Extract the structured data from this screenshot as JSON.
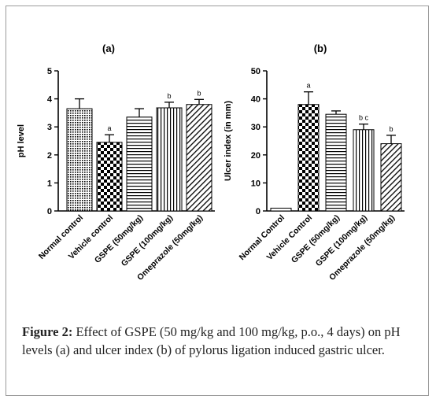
{
  "chart_data": [
    {
      "type": "bar",
      "title": "(a)",
      "xlabel": "",
      "ylabel": "pH level",
      "ylim": [
        0,
        5
      ],
      "yticks": [
        "0",
        "1",
        "2",
        "3",
        "4",
        "5"
      ],
      "categories": [
        "Normal control",
        "Vehicle control",
        "GSPE (50mg/kg)",
        "GSPE (100mg/kg)",
        "Omeprazole (50mg/kg)"
      ],
      "values": [
        3.65,
        2.45,
        3.35,
        3.68,
        3.8
      ],
      "errors": [
        0.35,
        0.27,
        0.3,
        0.2,
        0.18
      ],
      "annotations": [
        "",
        "a",
        "",
        "b",
        "b"
      ],
      "patterns": [
        "dots",
        "checker",
        "hlines",
        "vlines",
        "diagonal"
      ]
    },
    {
      "type": "bar",
      "title": "(b)",
      "xlabel": "",
      "ylabel": "Ulcer index (in mm)",
      "ylim": [
        0,
        50
      ],
      "yticks": [
        "0",
        "10",
        "20",
        "30",
        "40",
        "50"
      ],
      "categories": [
        "Normal Control",
        "Vehicle Control",
        "GSPE (50mg/kg)",
        "GSPE (100mg/kg)",
        "Omeprazole (50mg/kg)"
      ],
      "values": [
        1,
        38,
        34.5,
        29,
        24
      ],
      "errors": [
        0,
        4.5,
        1.2,
        2,
        3
      ],
      "annotations": [
        "",
        "a",
        "",
        "b c",
        "b"
      ],
      "patterns": [
        "none",
        "checker",
        "hlines",
        "vlines",
        "diagonal"
      ]
    }
  ],
  "caption": {
    "label": "Figure 2:",
    "text": " Effect of GSPE (50 mg/kg and 100 mg/kg, p.o., 4 days) on pH levels (a) and ulcer index (b) of pylorus ligation induced gastric ulcer."
  }
}
